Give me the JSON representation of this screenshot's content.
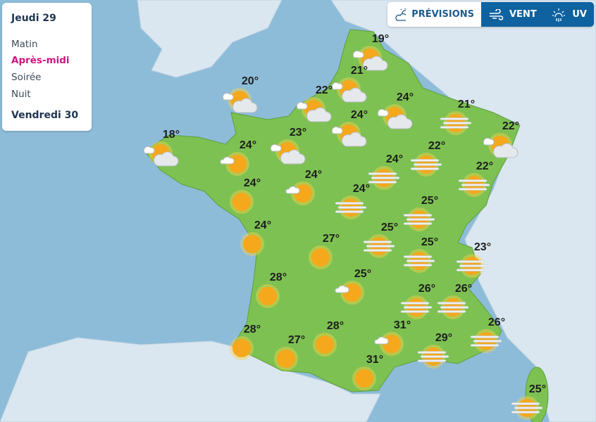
{
  "colors": {
    "sea": "#8dbcd9",
    "land": "#dae7f0",
    "france": "#7dc152",
    "sun": "#f5a81c",
    "accent_active": "#d0147f",
    "tab_active": "#0e62a0"
  },
  "sidebar": {
    "day1": "Jeudi 29",
    "periods": [
      "Matin",
      "Après-midi",
      "Soirée",
      "Nuit"
    ],
    "active_period": "Après-midi",
    "day2": "Vendredi 30"
  },
  "tabs": [
    {
      "label": "PRÉVISIONS",
      "icon": "sun-cloud-icon"
    },
    {
      "label": "VENT",
      "icon": "wind-icon"
    },
    {
      "label": "UV",
      "icon": "uv-icon"
    }
  ],
  "forecasts": [
    {
      "temp": "19°",
      "icon": "sun-cloud"
    },
    {
      "temp": "21°",
      "icon": "sun-cloud"
    },
    {
      "temp": "20°",
      "icon": "sun-cloud"
    },
    {
      "temp": "22°",
      "icon": "sun-cloud"
    },
    {
      "temp": "24°",
      "icon": "sun-cloud"
    },
    {
      "temp": "24°",
      "icon": "sun-cloud"
    },
    {
      "temp": "21°",
      "icon": "sun-fog"
    },
    {
      "temp": "23°",
      "icon": "sun-cloud"
    },
    {
      "temp": "18°",
      "icon": "sun-cloud"
    },
    {
      "temp": "24°",
      "icon": "sun-small-cloud"
    },
    {
      "temp": "22°",
      "icon": "sun-cloud"
    },
    {
      "temp": "22°",
      "icon": "sun-fog"
    },
    {
      "temp": "24°",
      "icon": "sun-fog"
    },
    {
      "temp": "22°",
      "icon": "sun-fog"
    },
    {
      "temp": "24°",
      "icon": "sun-small-cloud"
    },
    {
      "temp": "24°",
      "icon": "sun"
    },
    {
      "temp": "24°",
      "icon": "sun-fog"
    },
    {
      "temp": "25°",
      "icon": "sun-fog"
    },
    {
      "temp": "24°",
      "icon": "sun"
    },
    {
      "temp": "27°",
      "icon": "sun"
    },
    {
      "temp": "25°",
      "icon": "sun-fog"
    },
    {
      "temp": "25°",
      "icon": "sun-fog"
    },
    {
      "temp": "23°",
      "icon": "sun-fog"
    },
    {
      "temp": "28°",
      "icon": "sun"
    },
    {
      "temp": "25°",
      "icon": "sun-small-cloud"
    },
    {
      "temp": "26°",
      "icon": "sun-fog"
    },
    {
      "temp": "26°",
      "icon": "sun-fog"
    },
    {
      "temp": "28°",
      "icon": "sun"
    },
    {
      "temp": "27°",
      "icon": "sun"
    },
    {
      "temp": "28°",
      "icon": "sun"
    },
    {
      "temp": "31°",
      "icon": "sun-small-cloud"
    },
    {
      "temp": "29°",
      "icon": "sun-fog"
    },
    {
      "temp": "26°",
      "icon": "sun-fog"
    },
    {
      "temp": "31°",
      "icon": "sun"
    },
    {
      "temp": "25°",
      "icon": "sun-fog"
    }
  ]
}
